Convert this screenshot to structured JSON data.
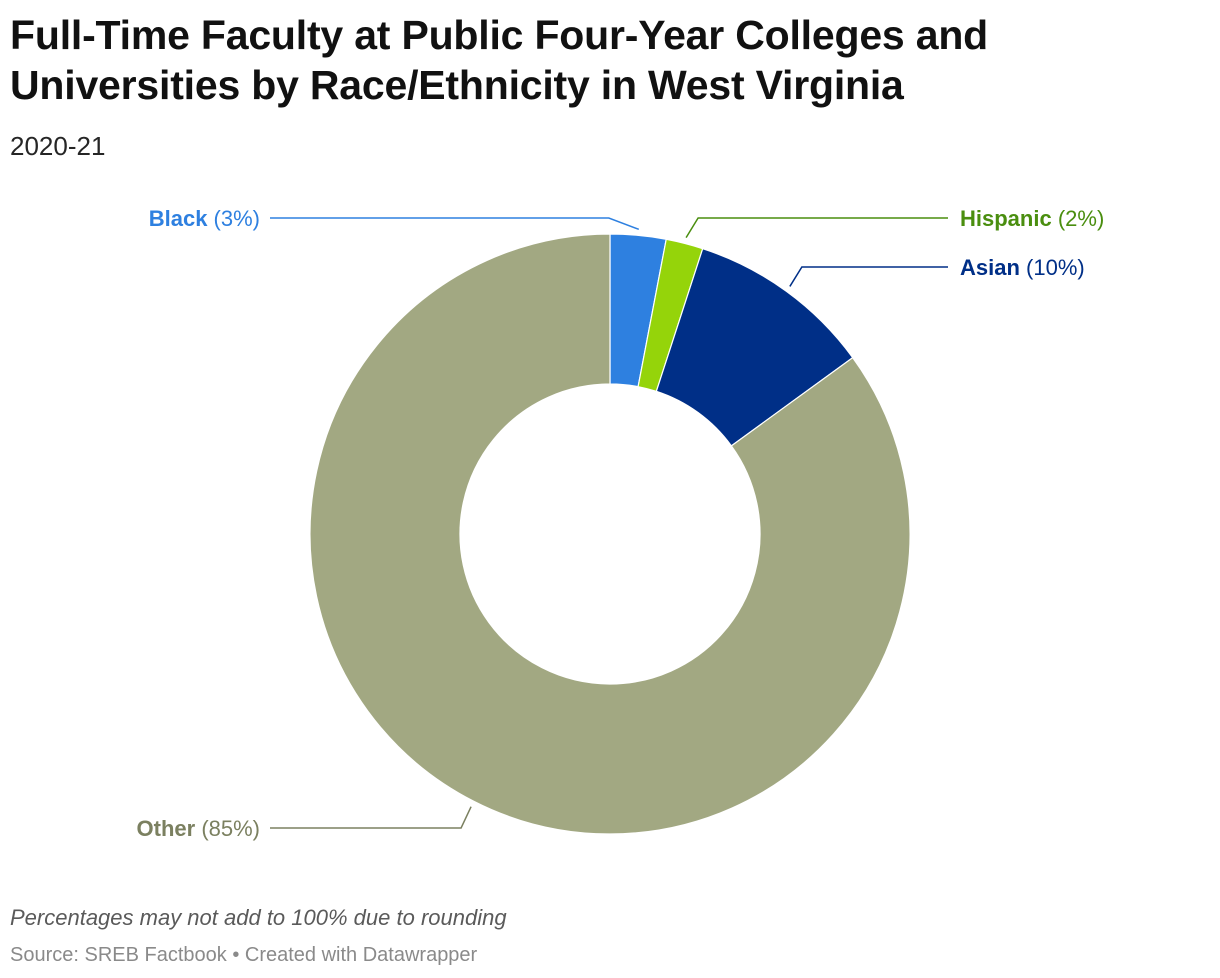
{
  "title": "Full-Time Faculty at Public Four-Year Colleges and Universities by Race/Ethnicity in West Virginia",
  "subtitle": "2020-21",
  "notes": "Percentages may not add to 100% due to rounding",
  "source": "Source: SREB Factbook • Created with Datawrapper",
  "chart_data": {
    "type": "pie",
    "variant": "donut",
    "slices": [
      {
        "label": "Black",
        "value": 3,
        "value_label": "(3%)",
        "color": "#2e80e0",
        "label_side": "left"
      },
      {
        "label": "Hispanic",
        "value": 2,
        "value_label": "(2%)",
        "color": "#95d40a",
        "text_color": "#4a8e0f",
        "label_side": "right"
      },
      {
        "label": "Asian",
        "value": 10,
        "value_label": "(10%)",
        "color": "#002f87",
        "label_side": "right"
      },
      {
        "label": "Other",
        "value": 85,
        "value_label": "(85%)",
        "color": "#a2a882",
        "text_color": "#7b8060",
        "label_side": "left"
      }
    ]
  }
}
